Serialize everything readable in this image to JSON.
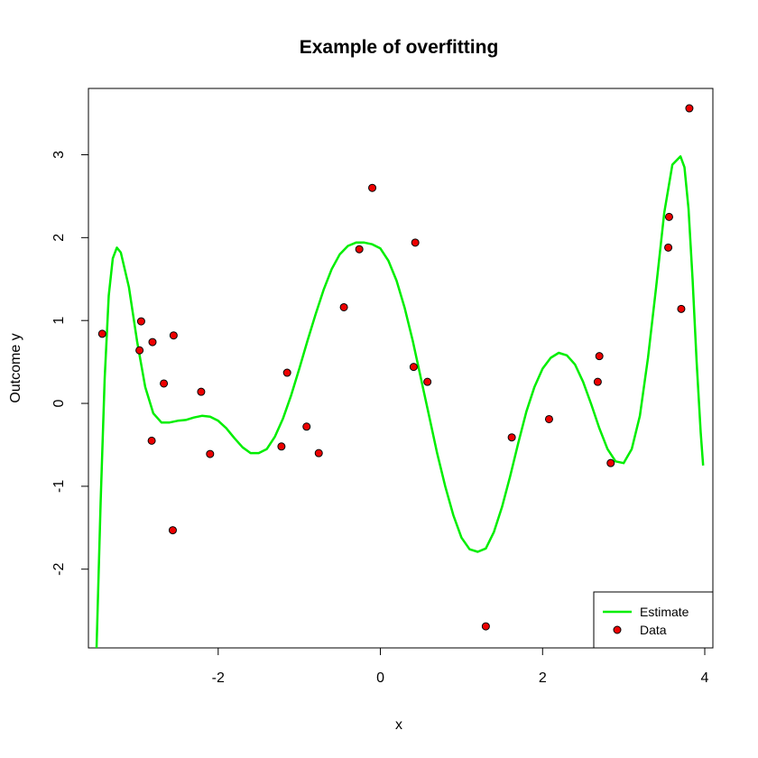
{
  "chart_data": {
    "type": "scatter",
    "title": "Example of overfitting",
    "xlabel": "x",
    "ylabel": "Outcome y",
    "xlim": [
      -3.6,
      4.1
    ],
    "ylim": [
      -2.95,
      3.8
    ],
    "x_ticks": [
      -2,
      0,
      2,
      4
    ],
    "x_tick_labels": [
      "-2",
      "0",
      "2",
      "4"
    ],
    "y_ticks": [
      -2,
      -1,
      0,
      1,
      2,
      3
    ],
    "y_tick_labels": [
      "-2",
      "-1",
      "0",
      "1",
      "2",
      "3"
    ],
    "grid": false,
    "legend_position": "bottom-right",
    "legend": [
      {
        "label": "Estimate",
        "kind": "line",
        "color": "#00ee00"
      },
      {
        "label": "Data",
        "kind": "point",
        "color": "#ee0000"
      }
    ],
    "series": [
      {
        "name": "Data",
        "kind": "points",
        "color": "#ee0000",
        "x": [
          -3.43,
          -2.97,
          -2.95,
          -2.82,
          -2.81,
          -2.67,
          -2.56,
          -2.55,
          -2.21,
          -2.1,
          -1.22,
          -1.15,
          -0.91,
          -0.76,
          -0.45,
          -0.26,
          -0.1,
          0.41,
          0.43,
          0.58,
          1.3,
          1.62,
          2.08,
          2.68,
          2.7,
          2.84,
          3.55,
          3.56,
          3.71,
          3.81
        ],
        "y": [
          0.84,
          0.64,
          0.99,
          -0.45,
          0.74,
          0.24,
          -1.53,
          0.82,
          0.14,
          -0.61,
          -0.52,
          0.37,
          -0.28,
          -0.6,
          1.16,
          1.86,
          2.6,
          0.44,
          1.94,
          0.26,
          -2.69,
          -0.41,
          -0.19,
          0.26,
          0.57,
          -0.72,
          1.88,
          2.25,
          1.14,
          3.56
        ]
      },
      {
        "name": "Estimate",
        "kind": "line",
        "color": "#00ee00",
        "x": [
          -3.5,
          -3.45,
          -3.4,
          -3.35,
          -3.3,
          -3.25,
          -3.2,
          -3.1,
          -3.0,
          -2.9,
          -2.8,
          -2.7,
          -2.6,
          -2.5,
          -2.4,
          -2.3,
          -2.2,
          -2.1,
          -2.0,
          -1.9,
          -1.8,
          -1.7,
          -1.6,
          -1.5,
          -1.4,
          -1.3,
          -1.2,
          -1.1,
          -1.0,
          -0.9,
          -0.8,
          -0.7,
          -0.6,
          -0.5,
          -0.4,
          -0.3,
          -0.2,
          -0.1,
          0.0,
          0.1,
          0.2,
          0.3,
          0.4,
          0.5,
          0.6,
          0.7,
          0.8,
          0.9,
          1.0,
          1.1,
          1.2,
          1.3,
          1.4,
          1.5,
          1.6,
          1.7,
          1.8,
          1.9,
          2.0,
          2.1,
          2.2,
          2.3,
          2.4,
          2.5,
          2.6,
          2.7,
          2.8,
          2.9,
          3.0,
          3.1,
          3.2,
          3.3,
          3.4,
          3.5,
          3.6,
          3.7,
          3.75,
          3.8,
          3.85,
          3.9,
          3.95,
          3.98
        ],
        "y": [
          -2.95,
          -1.2,
          0.3,
          1.3,
          1.75,
          1.88,
          1.82,
          1.4,
          0.75,
          0.2,
          -0.12,
          -0.23,
          -0.23,
          -0.21,
          -0.2,
          -0.17,
          -0.15,
          -0.16,
          -0.21,
          -0.3,
          -0.42,
          -0.53,
          -0.6,
          -0.6,
          -0.55,
          -0.4,
          -0.18,
          0.1,
          0.42,
          0.75,
          1.07,
          1.37,
          1.62,
          1.8,
          1.9,
          1.94,
          1.94,
          1.92,
          1.87,
          1.72,
          1.48,
          1.15,
          0.75,
          0.3,
          -0.15,
          -0.6,
          -1.0,
          -1.35,
          -1.62,
          -1.76,
          -1.79,
          -1.75,
          -1.55,
          -1.25,
          -0.88,
          -0.48,
          -0.1,
          0.2,
          0.42,
          0.55,
          0.61,
          0.58,
          0.47,
          0.26,
          -0.01,
          -0.3,
          -0.55,
          -0.7,
          -0.72,
          -0.55,
          -0.15,
          0.55,
          1.4,
          2.3,
          2.88,
          2.98,
          2.85,
          2.35,
          1.5,
          0.5,
          -0.35,
          -0.75
        ]
      }
    ]
  }
}
